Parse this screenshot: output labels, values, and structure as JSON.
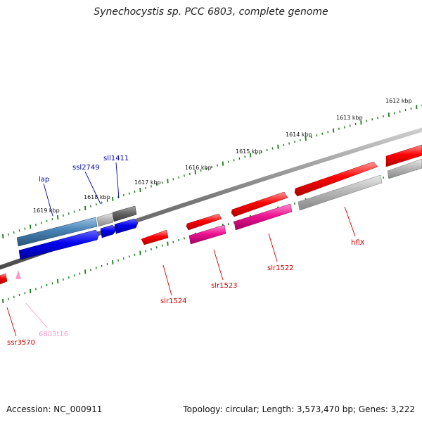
{
  "title": "Synechocystis sp. PCC 6803, complete genome",
  "footer": {
    "accession": "Accession: NC_000911",
    "topology": "Topology: circular; Length: 3,573,470 bp; Genes: 3,222"
  },
  "colors": {
    "forward_gene": "#ff0000",
    "reverse_gene": "#0000ee",
    "tRNA": "#ff99cc",
    "pseudo_gray": "#bbbbbb",
    "tick": "#1a7a1a",
    "backbone": "#777777"
  },
  "kbp_labels": [
    {
      "id": "k1612",
      "text": "1612 kbp"
    },
    {
      "id": "k1613",
      "text": "1613 kbp"
    },
    {
      "id": "k1614",
      "text": "1614 kbp"
    },
    {
      "id": "k1615",
      "text": "1615 kbp"
    },
    {
      "id": "k1616",
      "text": "1616 kbp"
    },
    {
      "id": "k1617",
      "text": "1617 kbp"
    },
    {
      "id": "k1618",
      "text": "1618 kbp"
    },
    {
      "id": "k1619",
      "text": "1619 kbp"
    }
  ],
  "gene_labels": [
    {
      "id": "lap",
      "text": "lap",
      "color": "#0000aa"
    },
    {
      "id": "ssl2749",
      "text": "ssl2749",
      "color": "#0000aa"
    },
    {
      "id": "sll1411",
      "text": "sll1411",
      "color": "#0000aa"
    },
    {
      "id": "slr1524",
      "text": "slr1524",
      "color": "#cc0000"
    },
    {
      "id": "slr1523",
      "text": "slr1523",
      "color": "#cc0000"
    },
    {
      "id": "slr1522",
      "text": "slr1522",
      "color": "#cc0000"
    },
    {
      "id": "hflX",
      "text": "hflX",
      "color": "#cc0000"
    },
    {
      "id": "ssr3570",
      "text": "ssr3570",
      "color": "#cc0000"
    },
    {
      "id": "6803t16",
      "text": "6803t16",
      "color": "#ff99cc"
    }
  ]
}
